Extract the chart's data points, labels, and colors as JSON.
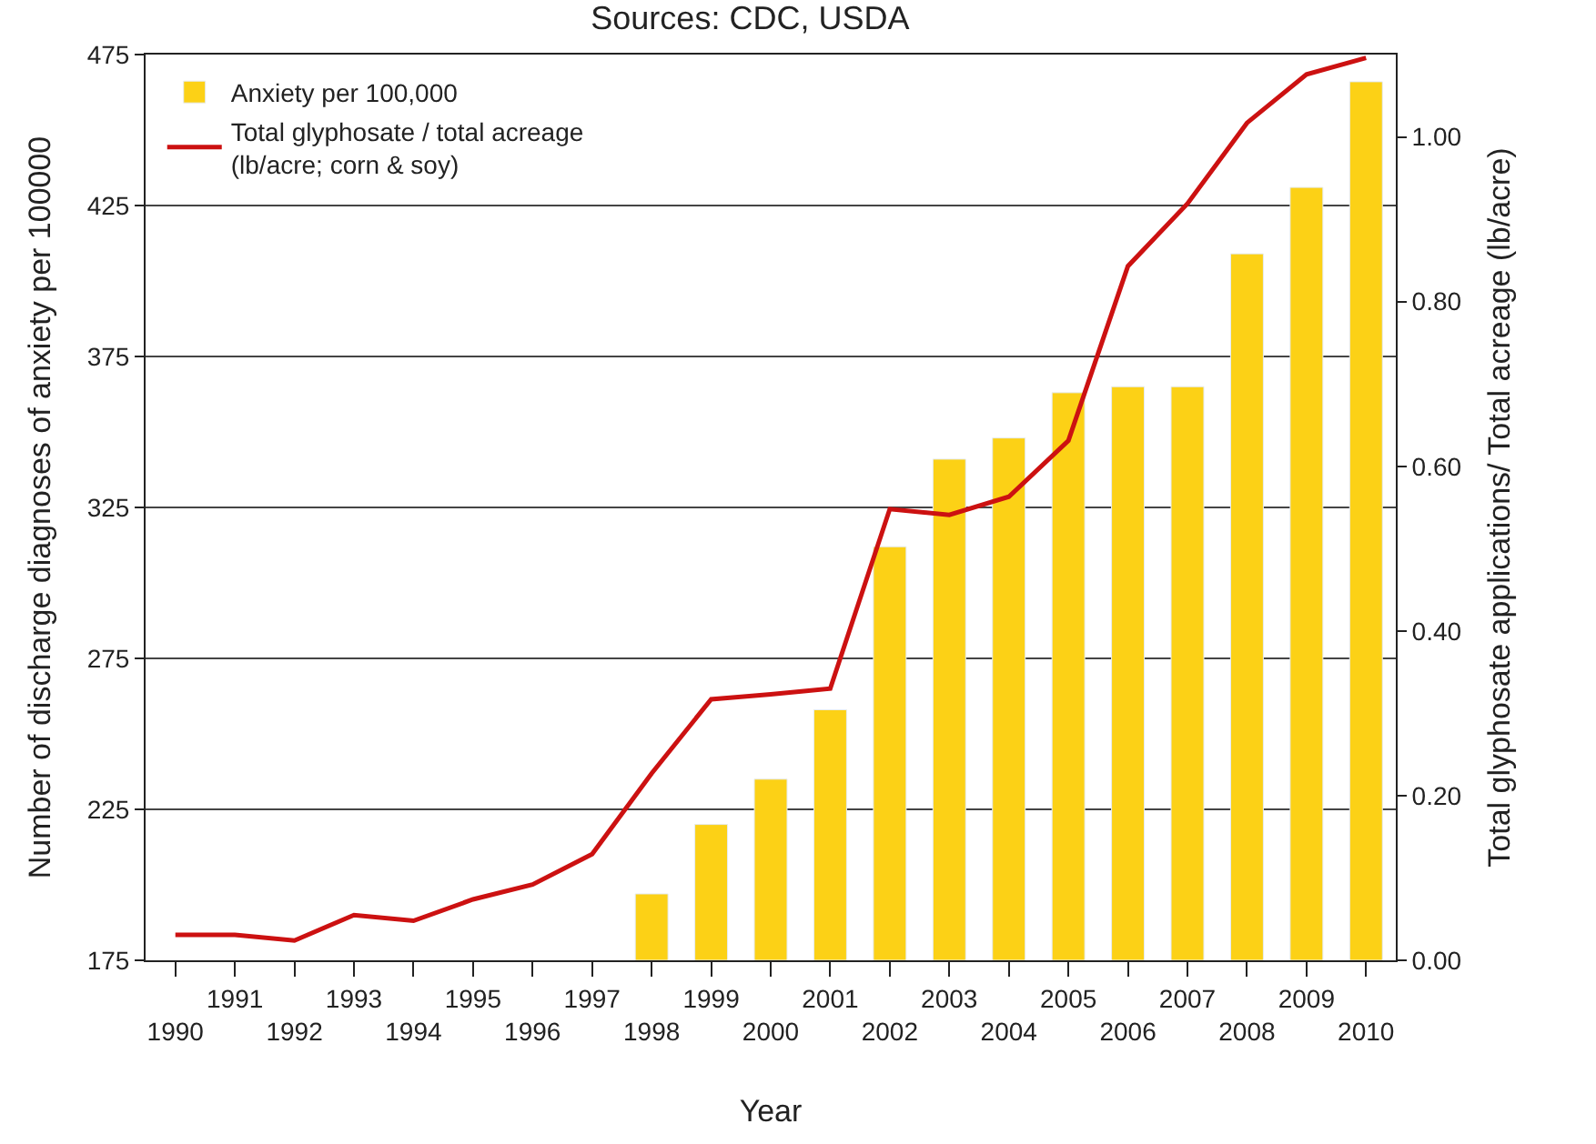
{
  "chart_data": {
    "type": "bar",
    "title": "Sources: CDC, USDA",
    "xlabel": "Year",
    "ylabel": "Number of discharge diagnoses of anxiety per 100000",
    "y2label": "Total glyphosate applications/ Total acreage (lb/acre)",
    "categories": [
      "1990",
      "1991",
      "1992",
      "1993",
      "1994",
      "1995",
      "1996",
      "1997",
      "1998",
      "1999",
      "2000",
      "2001",
      "2002",
      "2003",
      "2004",
      "2005",
      "2006",
      "2007",
      "2008",
      "2009",
      "2010"
    ],
    "series": [
      {
        "name": "Anxiety per 100,000",
        "color": "#fcd116",
        "values": [
          null,
          null,
          null,
          null,
          null,
          null,
          null,
          null,
          197,
          220,
          235,
          258,
          312,
          341,
          348,
          363,
          365,
          365,
          409,
          431,
          466
        ]
      },
      {
        "name": "Total glyphosate / total acreage\n(lb/acre; corn & soy)",
        "type": "line",
        "axis": "y2",
        "color": "#cc1111",
        "values": [
          0.031,
          0.031,
          0.024,
          0.055,
          0.048,
          0.074,
          0.092,
          0.129,
          0.227,
          0.317,
          0.323,
          0.33,
          0.548,
          0.541,
          0.563,
          0.631,
          0.843,
          0.919,
          1.017,
          1.076,
          1.096
        ]
      }
    ],
    "ylim": [
      175,
      475
    ],
    "yticks": [
      175,
      225,
      275,
      325,
      375,
      425,
      475
    ],
    "y2lim": [
      0,
      1.1
    ],
    "y2ticks": [
      {
        "value": 0,
        "label": "0.00"
      },
      {
        "value": 0.2,
        "label": "0.20"
      },
      {
        "value": 0.4,
        "label": "0.40"
      },
      {
        "value": 0.6,
        "label": "0.60"
      },
      {
        "value": 0.8,
        "label": "0.80"
      },
      {
        "value": 1.0,
        "label": "1.00"
      }
    ],
    "grid": "y",
    "legend": "top left",
    "marker": "none",
    "line_style": "solid"
  }
}
